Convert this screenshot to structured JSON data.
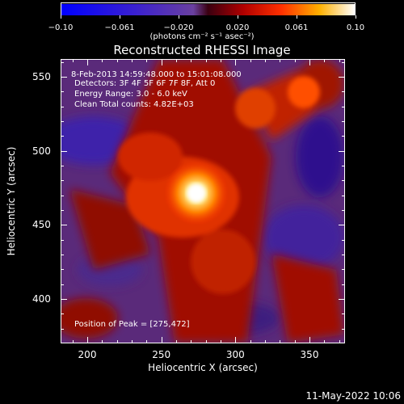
{
  "chart_data": {
    "type": "heatmap",
    "title": "Reconstructed RHESSI Image",
    "colorbar": {
      "ticks": [
        "−0.10",
        "−0.061",
        "−0.020",
        "0.020",
        "0.061",
        "0.10"
      ],
      "range": [
        -0.1,
        0.1
      ],
      "units": "(photons cm⁻² s⁻¹ asec⁻²)"
    },
    "xlabel": "Heliocentric X (arcsec)",
    "ylabel": "Heliocentric Y (arcsec)",
    "x_ticks": [
      "200",
      "250",
      "300",
      "350"
    ],
    "y_ticks": [
      "550",
      "500",
      "450",
      "400"
    ],
    "xlim": [
      182,
      374
    ],
    "ylim": [
      370,
      562
    ],
    "peak": [
      275,
      472
    ],
    "annotations": {
      "time": "8-Feb-2013 14:59:48.000 to 15:01:08.000",
      "detectors": "Detectors: 3F 4F 5F 6F 7F 8F, Att 0",
      "energy": "Energy Range: 3.0 - 6.0 keV",
      "clean": "Clean     Total counts: 4.82E+03",
      "peak_label": "Position of Peak = [275,472]"
    },
    "footer": "11-May-2022 10:06"
  }
}
